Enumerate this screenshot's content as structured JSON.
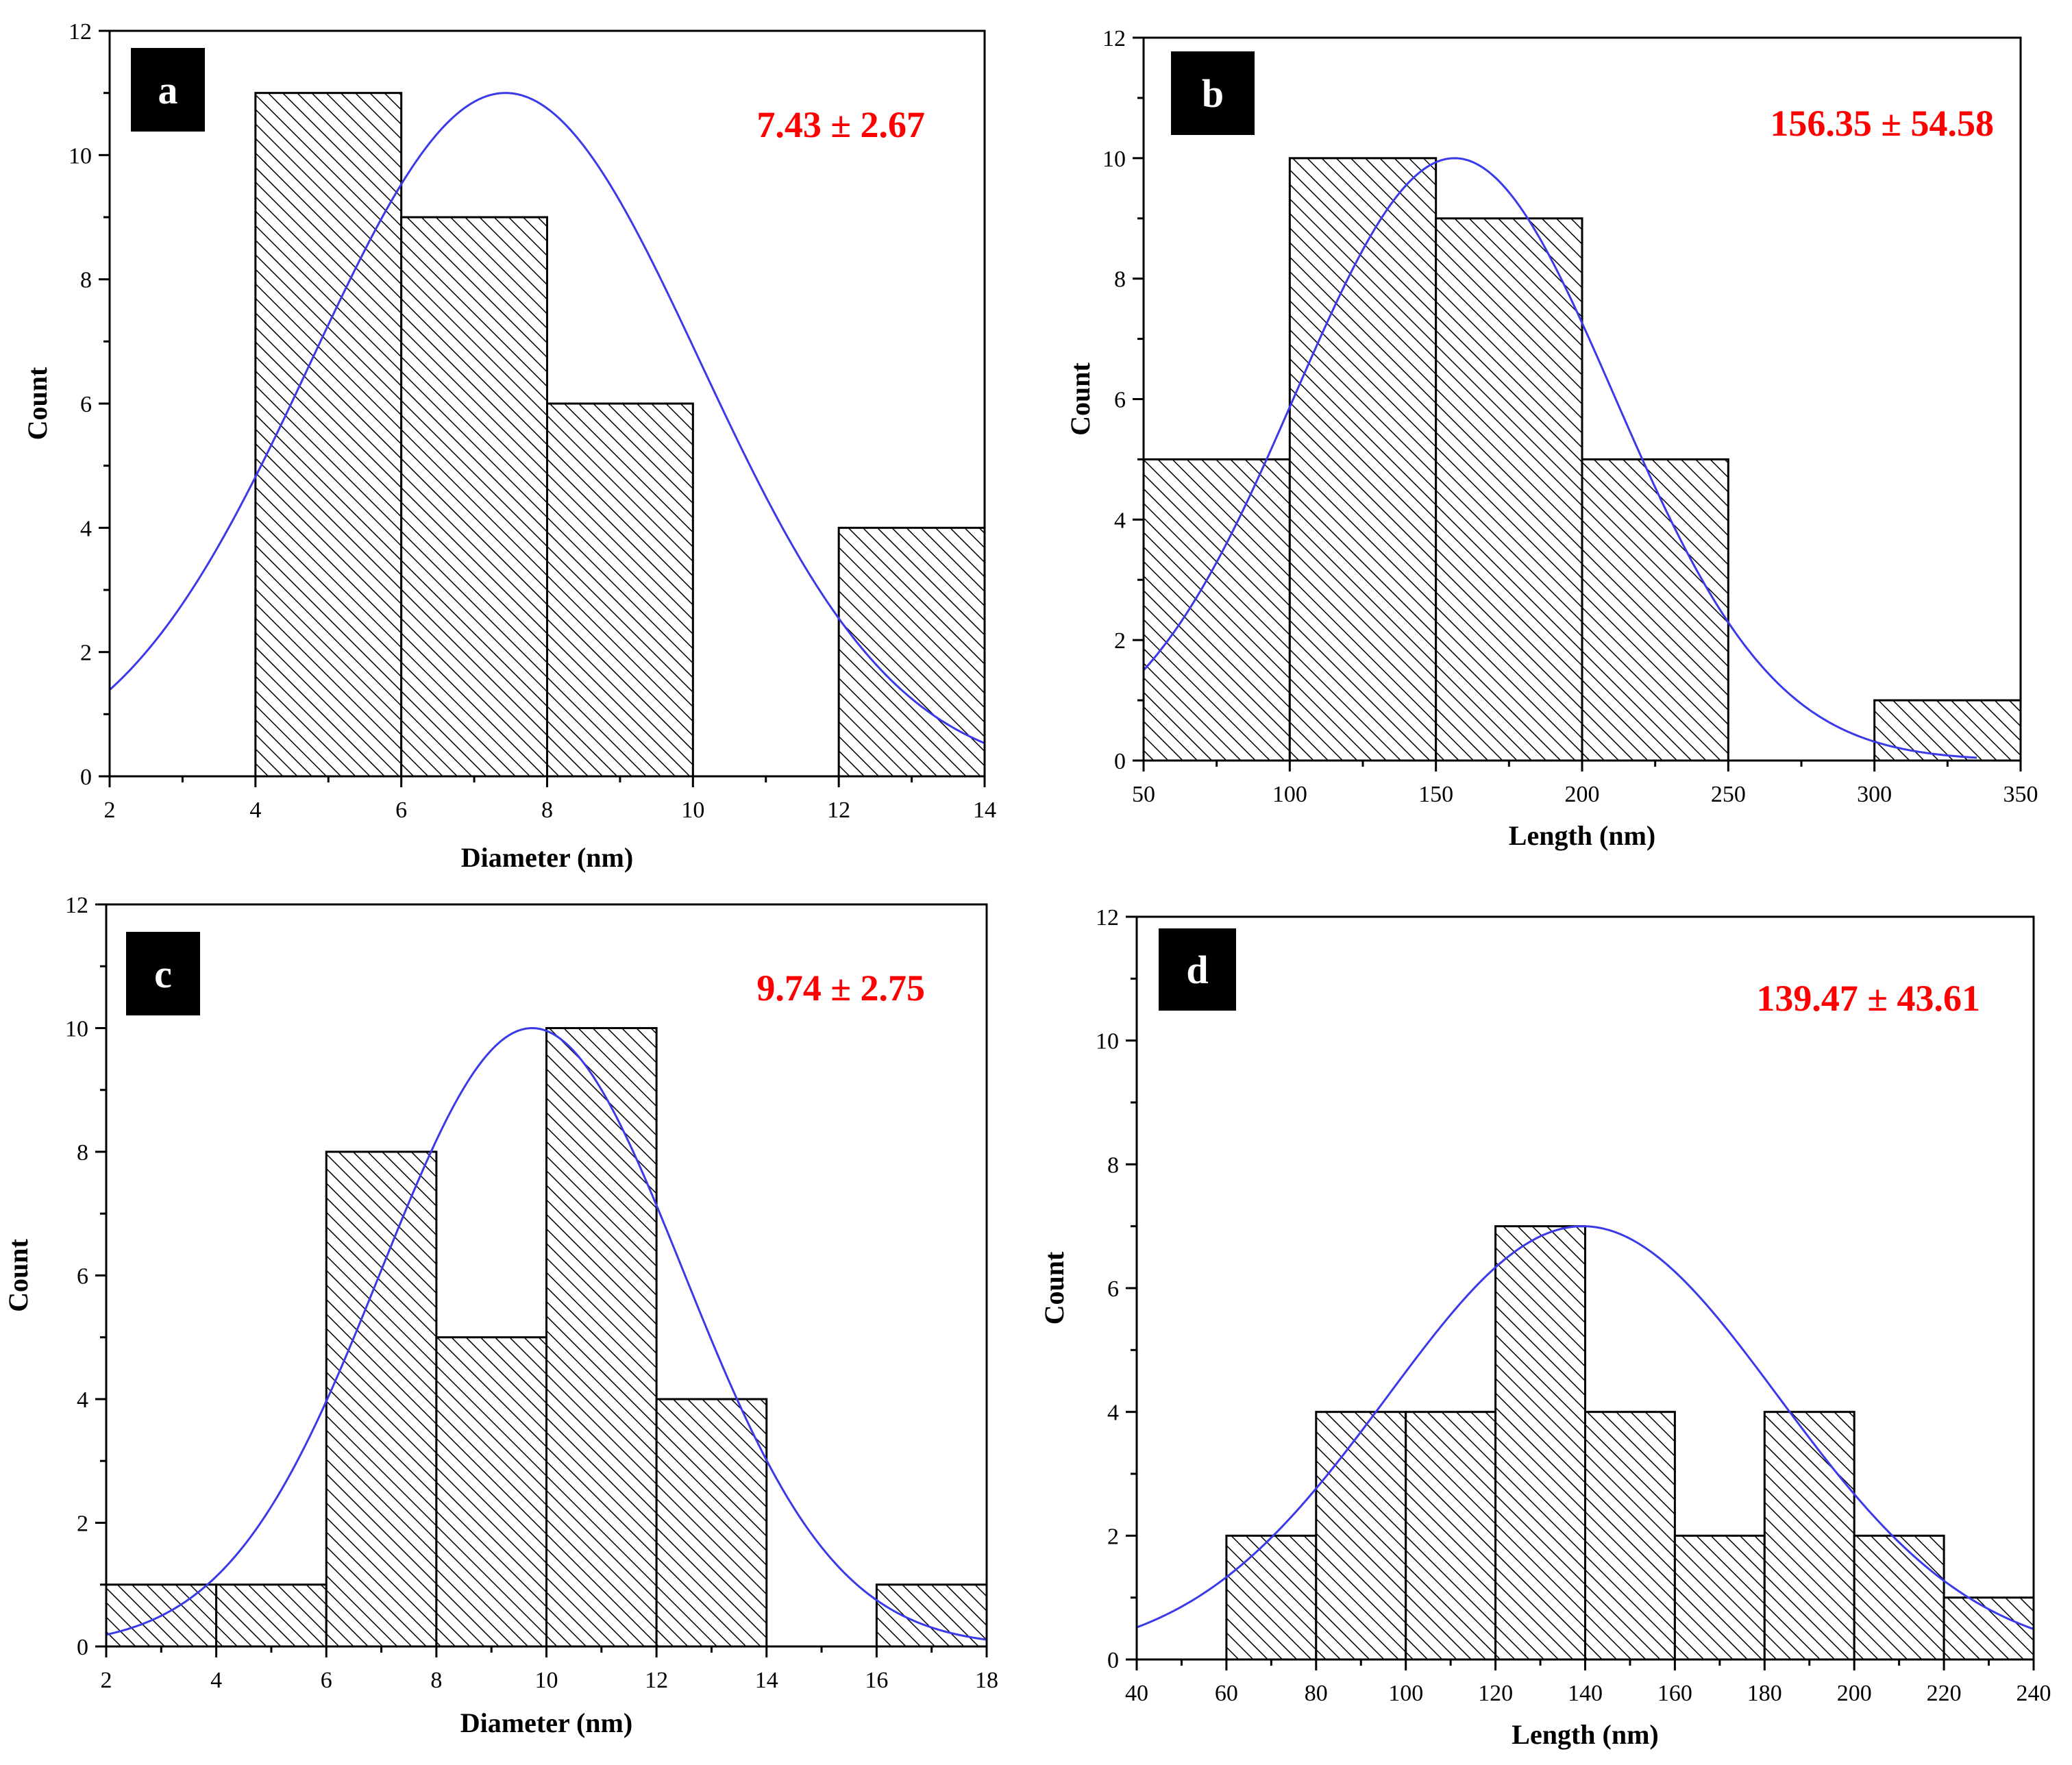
{
  "figure": {
    "colors": {
      "fit_curve": "#3a3ae8",
      "stat_text": "#ff0000",
      "bar_edge": "#000000",
      "hatch": "#000000",
      "label_box": "#000000",
      "label_text": "#ffffff"
    }
  },
  "chart_data": [
    {
      "panel": "a",
      "type": "bar",
      "subtype": "histogram",
      "xlabel": "Diameter (nm)",
      "ylabel": "Count",
      "xlim": [
        2,
        14
      ],
      "ylim": [
        0,
        12
      ],
      "xticks": [
        2,
        4,
        6,
        8,
        10,
        12,
        14
      ],
      "yticks": [
        0,
        2,
        4,
        6,
        8,
        10,
        12
      ],
      "bins": [
        {
          "start": 4,
          "end": 6,
          "count": 11
        },
        {
          "start": 6,
          "end": 8,
          "count": 9
        },
        {
          "start": 8,
          "end": 10,
          "count": 6
        },
        {
          "start": 12,
          "end": 14,
          "count": 4
        }
      ],
      "fit": {
        "type": "gaussian",
        "mean": 7.43,
        "sd": 2.67,
        "peak": 11
      },
      "stat_label": "7.43 ± 2.67",
      "legend": "top-right"
    },
    {
      "panel": "b",
      "type": "bar",
      "subtype": "histogram",
      "xlabel": "Length (nm)",
      "ylabel": "Count",
      "xlim": [
        50,
        350
      ],
      "ylim": [
        0,
        12
      ],
      "xticks": [
        50,
        100,
        150,
        200,
        250,
        300,
        350
      ],
      "yticks": [
        0,
        2,
        4,
        6,
        8,
        10,
        12
      ],
      "bins": [
        {
          "start": 50,
          "end": 100,
          "count": 5
        },
        {
          "start": 100,
          "end": 150,
          "count": 10
        },
        {
          "start": 150,
          "end": 200,
          "count": 9
        },
        {
          "start": 200,
          "end": 250,
          "count": 5
        },
        {
          "start": 300,
          "end": 350,
          "count": 1
        }
      ],
      "fit": {
        "type": "gaussian",
        "mean": 156.35,
        "sd": 54.58,
        "peak": 10,
        "x_end": 335
      },
      "stat_label": "156.35 ± 54.58",
      "legend": "top-right"
    },
    {
      "panel": "c",
      "type": "bar",
      "subtype": "histogram",
      "xlabel": "Diameter (nm)",
      "ylabel": "Count",
      "xlim": [
        2,
        18
      ],
      "ylim": [
        0,
        12
      ],
      "xticks": [
        2,
        4,
        6,
        8,
        10,
        12,
        14,
        16,
        18
      ],
      "yticks": [
        0,
        2,
        4,
        6,
        8,
        10,
        12
      ],
      "bins": [
        {
          "start": 2,
          "end": 4,
          "count": 1
        },
        {
          "start": 4,
          "end": 6,
          "count": 1
        },
        {
          "start": 6,
          "end": 8,
          "count": 8
        },
        {
          "start": 8,
          "end": 10,
          "count": 5
        },
        {
          "start": 10,
          "end": 12,
          "count": 10
        },
        {
          "start": 12,
          "end": 14,
          "count": 4
        },
        {
          "start": 16,
          "end": 18,
          "count": 1
        }
      ],
      "fit": {
        "type": "gaussian",
        "mean": 9.74,
        "sd": 2.75,
        "peak": 10
      },
      "stat_label": "9.74 ± 2.75",
      "legend": "top-right"
    },
    {
      "panel": "d",
      "type": "bar",
      "subtype": "histogram",
      "xlabel": "Length (nm)",
      "ylabel": "Count",
      "xlim": [
        40,
        240
      ],
      "ylim": [
        0,
        12
      ],
      "xticks": [
        40,
        60,
        80,
        100,
        120,
        140,
        160,
        180,
        200,
        220,
        240
      ],
      "yticks": [
        0,
        2,
        4,
        6,
        8,
        10,
        12
      ],
      "bins": [
        {
          "start": 60,
          "end": 80,
          "count": 2
        },
        {
          "start": 80,
          "end": 100,
          "count": 4
        },
        {
          "start": 100,
          "end": 120,
          "count": 4
        },
        {
          "start": 120,
          "end": 140,
          "count": 7
        },
        {
          "start": 140,
          "end": 160,
          "count": 4
        },
        {
          "start": 160,
          "end": 180,
          "count": 2
        },
        {
          "start": 180,
          "end": 200,
          "count": 4
        },
        {
          "start": 200,
          "end": 220,
          "count": 2
        },
        {
          "start": 220,
          "end": 240,
          "count": 1
        }
      ],
      "fit": {
        "type": "gaussian",
        "mean": 139.47,
        "sd": 43.61,
        "peak": 7
      },
      "stat_label": "139.47 ± 43.61",
      "legend": "top-right"
    }
  ]
}
